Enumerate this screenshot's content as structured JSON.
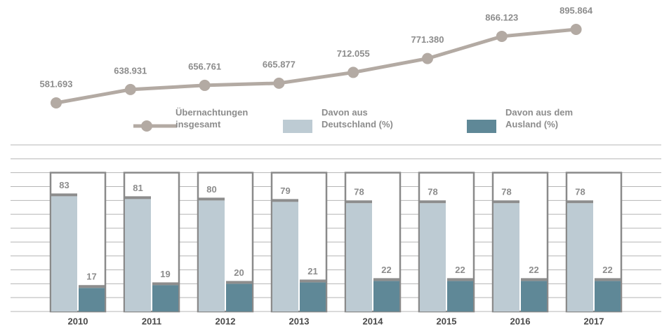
{
  "chart_data": [
    {
      "type": "line",
      "series": [
        {
          "name": "Übernachtungen insgesamt",
          "color": "#b3aaa3",
          "values": [
            581693,
            638931,
            656761,
            665877,
            712055,
            771380,
            866123,
            895864
          ],
          "value_labels": [
            "581.693",
            "638.931",
            "656.761",
            "665.877",
            "712.055",
            "771.380",
            "866.123",
            "895.864"
          ]
        }
      ]
    },
    {
      "type": "bar",
      "categories": [
        "2010",
        "2011",
        "2012",
        "2013",
        "2014",
        "2015",
        "2016",
        "2017"
      ],
      "series": [
        {
          "name": "Davon aus Deutschland (%)",
          "color": "#bdcbd3",
          "values": [
            83,
            81,
            80,
            79,
            78,
            78,
            78,
            78
          ]
        },
        {
          "name": "Davon aus dem Ausland (%)",
          "color": "#5f8897",
          "values": [
            17,
            19,
            20,
            21,
            22,
            22,
            22,
            22
          ]
        }
      ],
      "ylim": [
        0,
        120
      ],
      "yticks": [
        0,
        10,
        20,
        30,
        40,
        50,
        60,
        70,
        80,
        90,
        100,
        110,
        120
      ],
      "grid": true
    }
  ]
}
